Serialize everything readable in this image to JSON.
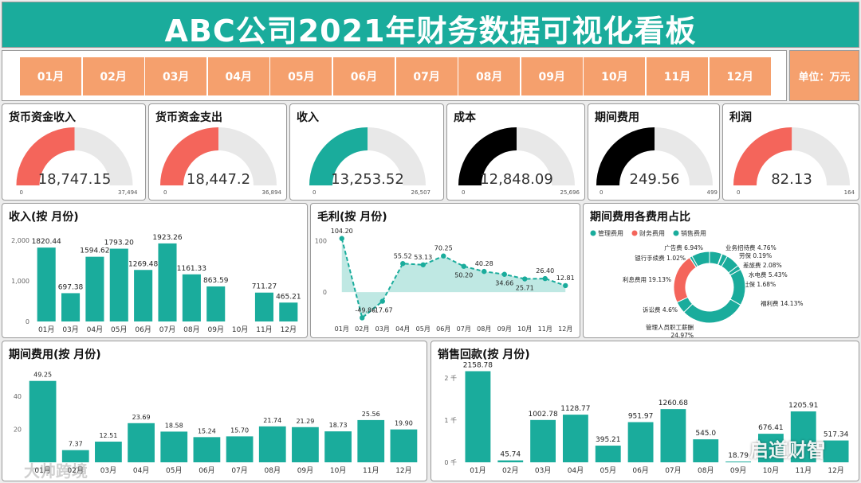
{
  "header": {
    "title": "ABC公司2021年财务数据可视化看板"
  },
  "months": [
    "01月",
    "02月",
    "03月",
    "04月",
    "05月",
    "06月",
    "07月",
    "08月",
    "09月",
    "10月",
    "11月",
    "12月"
  ],
  "unit_label": "单位：万元",
  "colors": {
    "teal": "#1aac9c",
    "orange": "#f5a06d",
    "coral": "#f4655b",
    "black": "#000000",
    "track": "#e8e8e8"
  },
  "kpis": [
    {
      "title": "货币资金收入",
      "value": "18,747.15",
      "value_num": 18747.15,
      "min": "0",
      "max": "37,494",
      "max_num": 37494,
      "color": "#f4655b"
    },
    {
      "title": "货币资金支出",
      "value": "18,447.2",
      "value_num": 18447.2,
      "min": "0",
      "max": "36,894",
      "max_num": 36894,
      "color": "#f4655b"
    },
    {
      "title": "收入",
      "value": "13,253.52",
      "value_num": 13253.52,
      "min": "0",
      "max": "26,507",
      "max_num": 26507,
      "color": "#1aac9c"
    },
    {
      "title": "成本",
      "value": "12,848.09",
      "value_num": 12848.09,
      "min": "0",
      "max": "25,696",
      "max_num": 25696,
      "color": "#000000"
    },
    {
      "title": "期间费用",
      "value": "249.56",
      "value_num": 249.56,
      "min": "0",
      "max": "499",
      "max_num": 499,
      "color": "#000000"
    },
    {
      "title": "利润",
      "value": "82.13",
      "value_num": 82.13,
      "min": "0",
      "max": "164",
      "max_num": 164,
      "color": "#f4655b"
    }
  ],
  "panels": {
    "revenue": "收入(按 月份)",
    "gross": "毛利(按 月份)",
    "expense_share": "期间费用各费用占比",
    "period_expense": "期间费用(按 月份)",
    "collection": "销售回款(按 月份)"
  },
  "chart_data": [
    {
      "type": "bar",
      "title": "收入(按 月份)",
      "categories": [
        "01月",
        "03月",
        "04月",
        "05月",
        "06月",
        "07月",
        "08月",
        "09月",
        "10月",
        "11月",
        "12月"
      ],
      "values": [
        1820.44,
        697.38,
        1594.62,
        1793.2,
        1269.48,
        1923.26,
        1161.33,
        863.59,
        null,
        711.27,
        465.21
      ],
      "labels": [
        "1820.44",
        "697.38",
        "1594.62",
        "1793.20",
        "1269.48",
        "1923.26",
        "1161.33",
        "863.59",
        "",
        "711.27",
        "465.21"
      ],
      "yticks": [
        "0",
        "1,000",
        "2,000"
      ],
      "ylim": [
        0,
        2000
      ]
    },
    {
      "type": "line",
      "title": "毛利(按 月份)",
      "categories": [
        "01月",
        "02月",
        "03月",
        "04月",
        "05月",
        "06月",
        "07月",
        "08月",
        "09月",
        "10月",
        "11月",
        "12月"
      ],
      "values": [
        104.2,
        -49.86,
        -17.67,
        55.52,
        53.13,
        70.25,
        50.2,
        40.28,
        34.66,
        25.71,
        26.4,
        12.81
      ],
      "labels": [
        "104.20",
        "-49.86",
        "-17.67",
        "55.52",
        "53.13",
        "70.25",
        "50.20",
        "40.28",
        "34.66",
        "25.71",
        "26.40",
        "12.81"
      ],
      "yticks": [
        "0",
        "100"
      ],
      "ylim": [
        -60,
        110
      ]
    },
    {
      "type": "pie",
      "title": "期间费用各费用占比",
      "legend": [
        "管理费用",
        "财务费用",
        "销售费用"
      ],
      "slices": [
        {
          "label": "业务招待费 4.76%",
          "value": 4.76,
          "color": "#1aac9c"
        },
        {
          "label": "劳保 0.19%",
          "value": 0.19,
          "color": "#1aac9c"
        },
        {
          "label": "差旅费 2.08%",
          "value": 2.08,
          "color": "#1aac9c"
        },
        {
          "label": "水电费 5.43%",
          "value": 5.43,
          "color": "#1aac9c"
        },
        {
          "label": "社保 1.68%",
          "value": 1.68,
          "color": "#1aac9c"
        },
        {
          "label": "福利费 14.13%",
          "value": 14.13,
          "color": "#1aac9c"
        },
        {
          "label": "管理人员职工薪酬 24.97%",
          "value": 24.97,
          "color": "#1aac9c"
        },
        {
          "label": "诉讼费 4.6%",
          "value": 4.6,
          "color": "#1aac9c"
        },
        {
          "label": "利息费用 19.13%",
          "value": 19.13,
          "color": "#f4655b"
        },
        {
          "label": "银行手续费 1.02%",
          "value": 1.02,
          "color": "#1aac9c"
        },
        {
          "label": "广告费 6.94%",
          "value": 6.94,
          "color": "#1aac9c"
        }
      ]
    },
    {
      "type": "bar",
      "title": "期间费用(按 月份)",
      "categories": [
        "01月",
        "02月",
        "03月",
        "04月",
        "05月",
        "06月",
        "07月",
        "08月",
        "09月",
        "10月",
        "11月",
        "12月"
      ],
      "values": [
        49.25,
        7.37,
        12.51,
        23.69,
        18.58,
        15.24,
        15.7,
        21.74,
        21.29,
        18.73,
        25.56,
        19.9
      ],
      "labels": [
        "49.25",
        "7.37",
        "12.51",
        "23.69",
        "18.58",
        "15.24",
        "15.70",
        "21.74",
        "21.29",
        "18.73",
        "25.56",
        "19.90"
      ],
      "yticks": [
        "20",
        "40"
      ],
      "ylim": [
        0,
        52
      ]
    },
    {
      "type": "bar",
      "title": "销售回款(按 月份)",
      "categories": [
        "01月",
        "02月",
        "03月",
        "04月",
        "05月",
        "06月",
        "07月",
        "08月",
        "09月",
        "10月",
        "11月",
        "12月"
      ],
      "values": [
        2158.78,
        45.74,
        1002.78,
        1128.77,
        395.21,
        951.97,
        1260.68,
        545.0,
        18.79,
        676.41,
        1205.91,
        517.34
      ],
      "labels": [
        "2158.78",
        "45.74",
        "1002.78",
        "1128.77",
        "395.21",
        "951.97",
        "1260.68",
        "545.0",
        "18.79",
        "676.41",
        "1205.91",
        "517.34"
      ],
      "yticks": [
        "0 千",
        "1 千",
        "2 千"
      ],
      "ylim": [
        0,
        2300
      ]
    }
  ],
  "watermark": {
    "left": "大帅跨境",
    "right": "启道财智"
  }
}
